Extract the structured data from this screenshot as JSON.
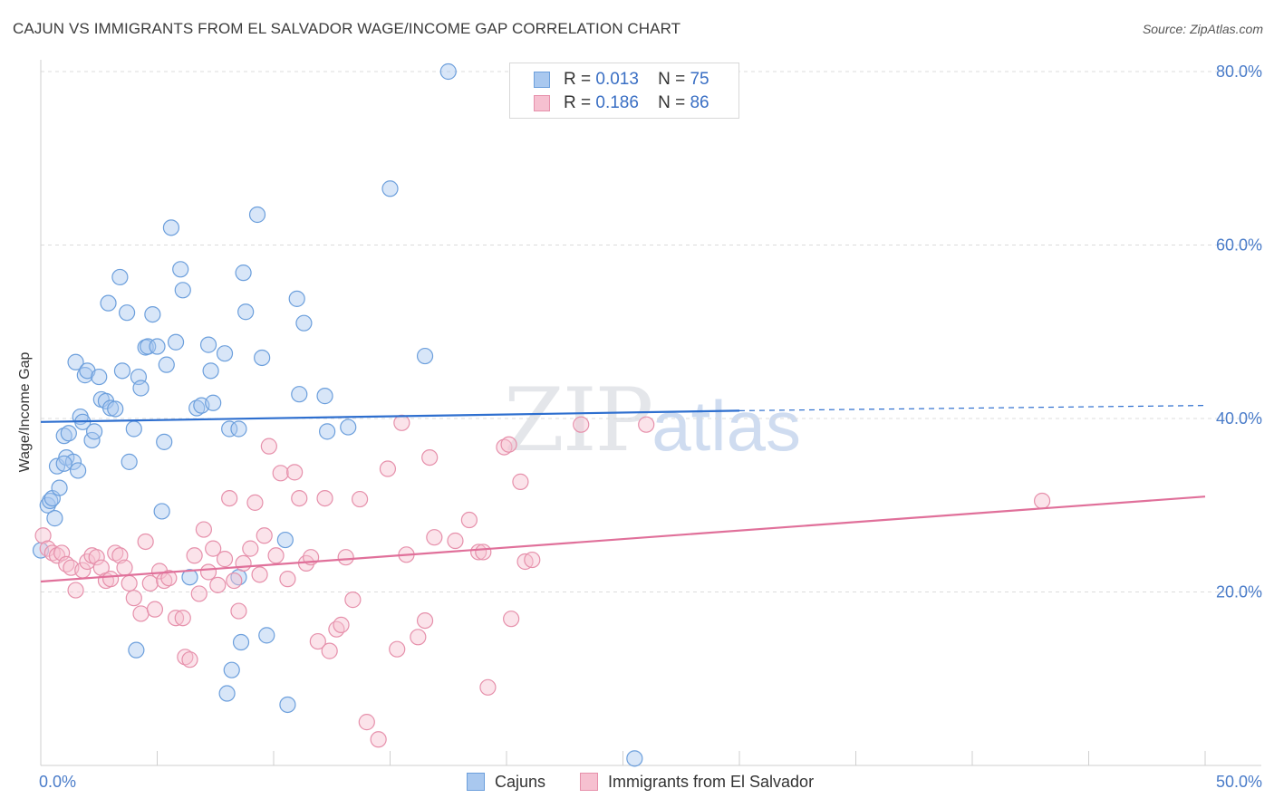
{
  "title": "CAJUN VS IMMIGRANTS FROM EL SALVADOR WAGE/INCOME GAP CORRELATION CHART",
  "source": "Source: ZipAtlas.com",
  "watermark": {
    "zip": "ZIP",
    "atlas": "atlas"
  },
  "legend": {
    "r_label": "R =",
    "n_label": "N =",
    "series": [
      {
        "name": "Cajuns",
        "r": "0.013",
        "n": "75"
      },
      {
        "name": "Immigrants from El Salvador",
        "r": "0.186",
        "n": "86"
      }
    ]
  },
  "colors": {
    "blue_fill": "#a9c8ef",
    "blue_stroke": "#6c9fdc",
    "blue_line": "#2e6fcf",
    "pink_fill": "#f6c0d0",
    "pink_stroke": "#e690ab",
    "pink_line": "#e0709a",
    "axis_label": "#4a7cc9"
  },
  "chart_data": {
    "type": "scatter",
    "title": "CAJUN VS IMMIGRANTS FROM EL SALVADOR WAGE/INCOME GAP CORRELATION CHART",
    "xlabel": "",
    "ylabel": "Wage/Income Gap",
    "xlim": [
      0,
      50
    ],
    "ylim": [
      0,
      80
    ],
    "x_tick_labels": [
      "0.0%",
      "50.0%"
    ],
    "y_ticks": [
      20,
      40,
      60,
      80
    ],
    "y_tick_labels": [
      "20.0%",
      "40.0%",
      "60.0%",
      "80.0%"
    ],
    "grid": true,
    "series": [
      {
        "name": "Cajuns",
        "trend": {
          "x0": 0,
          "y0": 39.6,
          "x1": 30,
          "y1": 40.9,
          "dash_to_x": 50,
          "dash_to_y": 41.5
        },
        "points": [
          [
            0.3,
            30
          ],
          [
            0.4,
            30.5
          ],
          [
            0.5,
            30.8
          ],
          [
            0.6,
            28.5
          ],
          [
            0.7,
            34.5
          ],
          [
            0.8,
            32
          ],
          [
            1,
            38
          ],
          [
            1.1,
            35.5
          ],
          [
            1.2,
            38.3
          ],
          [
            1.4,
            35
          ],
          [
            1.5,
            46.5
          ],
          [
            1.6,
            34
          ],
          [
            1.7,
            40.2
          ],
          [
            1.8,
            39.6
          ],
          [
            1.9,
            45
          ],
          [
            2,
            45.5
          ],
          [
            2.2,
            37.5
          ],
          [
            2.3,
            38.5
          ],
          [
            2.5,
            44.8
          ],
          [
            2.6,
            42.2
          ],
          [
            2.8,
            42
          ],
          [
            2.9,
            53.3
          ],
          [
            3,
            41.2
          ],
          [
            3.2,
            41.1
          ],
          [
            3.5,
            45.5
          ],
          [
            3.7,
            52.2
          ],
          [
            3.8,
            35
          ],
          [
            4,
            38.8
          ],
          [
            4.2,
            44.8
          ],
          [
            4.3,
            43.5
          ],
          [
            4.5,
            48.2
          ],
          [
            4.6,
            48.3
          ],
          [
            4.8,
            52
          ],
          [
            5,
            48.3
          ],
          [
            5.3,
            37.3
          ],
          [
            5.4,
            46.2
          ],
          [
            5.6,
            62
          ],
          [
            5.8,
            48.8
          ],
          [
            6,
            57.2
          ],
          [
            6.1,
            54.8
          ],
          [
            6.7,
            41.2
          ],
          [
            6.9,
            41.5
          ],
          [
            7.2,
            48.5
          ],
          [
            7.3,
            45.5
          ],
          [
            7.4,
            41.8
          ],
          [
            7.9,
            47.5
          ],
          [
            8.1,
            38.8
          ],
          [
            8.5,
            38.8
          ],
          [
            8.7,
            56.8
          ],
          [
            8.8,
            52.3
          ],
          [
            9.3,
            63.5
          ],
          [
            9.5,
            47
          ],
          [
            10.5,
            26
          ],
          [
            11,
            53.8
          ],
          [
            11.1,
            42.8
          ],
          [
            11.3,
            51
          ],
          [
            12.2,
            42.6
          ],
          [
            12.3,
            38.5
          ],
          [
            13.2,
            39
          ],
          [
            15,
            66.5
          ],
          [
            16.5,
            47.2
          ],
          [
            17.5,
            80
          ],
          [
            1,
            34.8
          ],
          [
            3.4,
            56.3
          ],
          [
            4.1,
            13.3
          ],
          [
            5.2,
            29.3
          ],
          [
            6.4,
            21.7
          ],
          [
            8.2,
            11
          ],
          [
            8.5,
            21.7
          ],
          [
            8.6,
            14.2
          ],
          [
            8,
            8.3
          ],
          [
            9.7,
            15
          ],
          [
            10.6,
            7
          ],
          [
            25.5,
            0.8
          ],
          [
            0,
            24.8
          ]
        ]
      },
      {
        "name": "Immigrants from El Salvador",
        "trend": {
          "x0": 0,
          "y0": 21.2,
          "x1": 50,
          "y1": 31
        },
        "points": [
          [
            0.1,
            26.5
          ],
          [
            0.3,
            25
          ],
          [
            0.5,
            24.5
          ],
          [
            0.7,
            24.2
          ],
          [
            0.9,
            24.5
          ],
          [
            1.1,
            23.2
          ],
          [
            1.3,
            22.8
          ],
          [
            1.5,
            20.2
          ],
          [
            1.8,
            22.5
          ],
          [
            2,
            23.5
          ],
          [
            2.2,
            24.2
          ],
          [
            2.4,
            24
          ],
          [
            2.6,
            22.8
          ],
          [
            2.8,
            21.3
          ],
          [
            3,
            21.5
          ],
          [
            3.2,
            24.5
          ],
          [
            3.4,
            24.2
          ],
          [
            3.6,
            22.8
          ],
          [
            3.8,
            21
          ],
          [
            4,
            19.3
          ],
          [
            4.3,
            17.5
          ],
          [
            4.5,
            25.8
          ],
          [
            4.7,
            21
          ],
          [
            4.9,
            18
          ],
          [
            5.1,
            22.4
          ],
          [
            5.3,
            21.3
          ],
          [
            5.5,
            21.6
          ],
          [
            5.8,
            17
          ],
          [
            6.1,
            17
          ],
          [
            6.2,
            12.5
          ],
          [
            6.4,
            12.2
          ],
          [
            6.6,
            24.2
          ],
          [
            6.8,
            19.8
          ],
          [
            7,
            27.2
          ],
          [
            7.2,
            22.3
          ],
          [
            7.4,
            25
          ],
          [
            7.6,
            20.8
          ],
          [
            7.9,
            23.8
          ],
          [
            8.1,
            30.8
          ],
          [
            8.3,
            21.3
          ],
          [
            8.5,
            17.8
          ],
          [
            8.7,
            23.3
          ],
          [
            9,
            25
          ],
          [
            9.2,
            30.3
          ],
          [
            9.4,
            22
          ],
          [
            9.6,
            26.5
          ],
          [
            9.8,
            36.8
          ],
          [
            10.1,
            24.2
          ],
          [
            10.3,
            33.7
          ],
          [
            10.6,
            21.5
          ],
          [
            10.9,
            33.8
          ],
          [
            11.1,
            30.8
          ],
          [
            11.4,
            23.3
          ],
          [
            11.6,
            24
          ],
          [
            11.9,
            14.3
          ],
          [
            12.2,
            30.8
          ],
          [
            12.4,
            13.2
          ],
          [
            12.7,
            15.7
          ],
          [
            12.9,
            16.2
          ],
          [
            13.1,
            24
          ],
          [
            13.4,
            19.1
          ],
          [
            13.7,
            30.7
          ],
          [
            14,
            5
          ],
          [
            14.5,
            3
          ],
          [
            14.9,
            34.2
          ],
          [
            15.3,
            13.4
          ],
          [
            15.5,
            39.5
          ],
          [
            15.7,
            24.3
          ],
          [
            16.2,
            14.8
          ],
          [
            16.5,
            16.7
          ],
          [
            16.7,
            35.5
          ],
          [
            16.9,
            26.3
          ],
          [
            17.8,
            25.9
          ],
          [
            18.4,
            28.3
          ],
          [
            18.8,
            24.6
          ],
          [
            19,
            24.6
          ],
          [
            19.2,
            9
          ],
          [
            19.9,
            36.7
          ],
          [
            20.1,
            37
          ],
          [
            20.2,
            16.9
          ],
          [
            20.6,
            32.7
          ],
          [
            20.8,
            23.5
          ],
          [
            21.1,
            23.7
          ],
          [
            23.2,
            39.3
          ],
          [
            26,
            39.3
          ],
          [
            43,
            30.5
          ]
        ]
      }
    ]
  }
}
